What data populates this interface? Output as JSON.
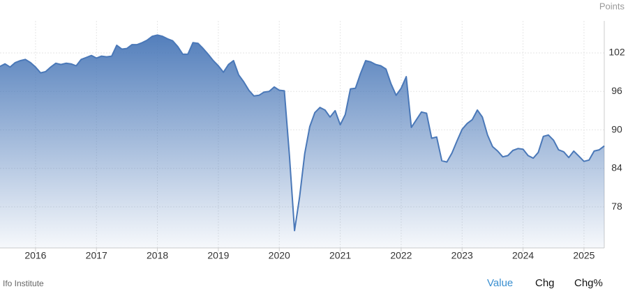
{
  "chart_data": {
    "type": "area",
    "unit_label": "Points",
    "source": "Ifo Institute",
    "tabs": [
      "Value",
      "Chg",
      "Chg%"
    ],
    "x": [
      2015.417,
      2015.5,
      2015.583,
      2015.667,
      2015.75,
      2015.833,
      2015.917,
      2016.0,
      2016.083,
      2016.167,
      2016.25,
      2016.333,
      2016.417,
      2016.5,
      2016.583,
      2016.667,
      2016.75,
      2016.833,
      2016.917,
      2017.0,
      2017.083,
      2017.167,
      2017.25,
      2017.333,
      2017.417,
      2017.5,
      2017.583,
      2017.667,
      2017.75,
      2017.833,
      2017.917,
      2018.0,
      2018.083,
      2018.167,
      2018.25,
      2018.333,
      2018.417,
      2018.5,
      2018.583,
      2018.667,
      2018.75,
      2018.833,
      2018.917,
      2019.0,
      2019.083,
      2019.167,
      2019.25,
      2019.333,
      2019.417,
      2019.5,
      2019.583,
      2019.667,
      2019.75,
      2019.833,
      2019.917,
      2020.0,
      2020.083,
      2020.167,
      2020.25,
      2020.333,
      2020.417,
      2020.5,
      2020.583,
      2020.667,
      2020.75,
      2020.833,
      2020.917,
      2021.0,
      2021.083,
      2021.167,
      2021.25,
      2021.333,
      2021.417,
      2021.5,
      2021.583,
      2021.667,
      2021.75,
      2021.833,
      2021.917,
      2022.0,
      2022.083,
      2022.167,
      2022.25,
      2022.333,
      2022.417,
      2022.5,
      2022.583,
      2022.667,
      2022.75,
      2022.833,
      2022.917,
      2023.0,
      2023.083,
      2023.167,
      2023.25,
      2023.333,
      2023.417,
      2023.5,
      2023.583,
      2023.667,
      2023.75,
      2023.833,
      2023.917,
      2024.0,
      2024.083,
      2024.167,
      2024.25,
      2024.333,
      2024.417,
      2024.5,
      2024.583,
      2024.667,
      2024.75,
      2024.833,
      2024.917,
      2025.0,
      2025.083,
      2025.167,
      2025.25,
      2025.333
    ],
    "series": [
      {
        "color": "#4a78b8",
        "values": [
          99.9,
          100.3,
          99.8,
          100.5,
          100.8,
          101.0,
          100.5,
          99.8,
          98.9,
          99.1,
          99.8,
          100.4,
          100.2,
          100.4,
          100.3,
          100.0,
          101.0,
          101.3,
          101.6,
          101.2,
          101.5,
          101.4,
          101.5,
          103.2,
          102.6,
          102.7,
          103.3,
          103.3,
          103.6,
          104.0,
          104.6,
          104.8,
          104.6,
          104.2,
          103.9,
          103.0,
          101.8,
          101.8,
          103.6,
          103.5,
          102.7,
          101.8,
          100.8,
          100.0,
          99.0,
          100.2,
          100.8,
          98.6,
          97.5,
          96.2,
          95.3,
          95.4,
          95.9,
          96.0,
          96.7,
          96.2,
          96.1,
          86.0,
          74.3,
          79.5,
          86.3,
          90.5,
          92.7,
          93.5,
          93.1,
          92.0,
          93.0,
          90.8,
          92.4,
          96.4,
          96.5,
          98.8,
          100.8,
          100.6,
          100.2,
          100.0,
          99.5,
          97.2,
          95.4,
          96.5,
          98.3,
          90.4,
          91.6,
          92.8,
          92.6,
          88.7,
          88.9,
          85.2,
          85.0,
          86.4,
          88.3,
          90.1,
          91.0,
          91.6,
          93.1,
          92.0,
          89.2,
          87.4,
          86.7,
          85.8,
          86.0,
          86.8,
          87.1,
          87.0,
          86.0,
          85.6,
          86.5,
          89.0,
          89.2,
          88.4,
          86.9,
          86.6,
          85.7,
          86.7,
          85.9,
          85.1,
          85.3,
          86.7,
          86.9,
          87.5
        ]
      }
    ],
    "xlim": [
      2015.417,
      2025.333
    ],
    "xticks": [
      2016,
      2017,
      2018,
      2019,
      2020,
      2021,
      2022,
      2023,
      2024,
      2025
    ],
    "ylim": [
      71.6,
      107
    ],
    "yticks": [
      78,
      84,
      90,
      96,
      102
    ],
    "grid": true
  }
}
